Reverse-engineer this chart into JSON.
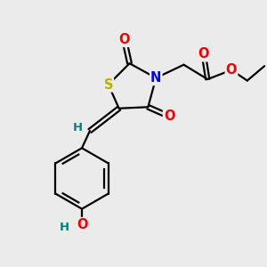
{
  "bg_color": "#ebebeb",
  "atom_colors": {
    "S": "#b8b000",
    "N": "#0000ee",
    "O": "#ee0000",
    "C": "#000000",
    "H": "#008080"
  },
  "bond_color": "#000000",
  "font_size_atom": 10.5,
  "font_size_h": 9.5
}
